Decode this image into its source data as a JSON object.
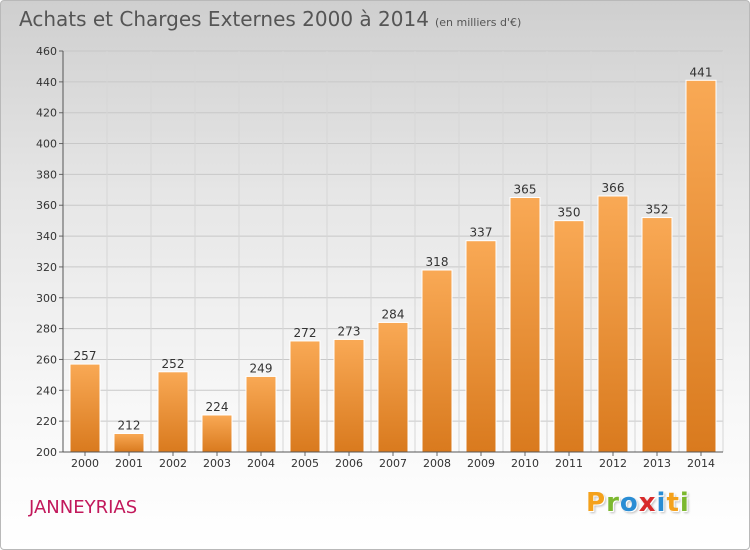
{
  "header": {
    "title": "Achats et Charges Externes 2000 à 2014",
    "subtitle": "(en milliers d'€)"
  },
  "footer": {
    "commune": "JANNEYRIAS",
    "logo_letters": [
      "P",
      "r",
      "o",
      "x",
      "i",
      "t",
      "i"
    ],
    "logo_colors": [
      "#f4a11b",
      "#7cb82f",
      "#2a8dd4",
      "#d82b2b",
      "#2a8dd4",
      "#f4a11b",
      "#7cb82f"
    ]
  },
  "chart_data": {
    "type": "bar",
    "title": "Achats et Charges Externes 2000 à 2014",
    "categories": [
      "2000",
      "2001",
      "2002",
      "2003",
      "2004",
      "2005",
      "2006",
      "2007",
      "2008",
      "2009",
      "2010",
      "2011",
      "2012",
      "2013",
      "2014"
    ],
    "values": [
      257,
      212,
      252,
      224,
      249,
      272,
      273,
      284,
      318,
      337,
      365,
      350,
      366,
      352,
      441
    ],
    "xlabel": "",
    "ylabel": "",
    "ylim": [
      200,
      460
    ],
    "yticks": [
      200,
      220,
      240,
      260,
      280,
      300,
      320,
      340,
      360,
      380,
      400,
      420,
      440,
      460
    ],
    "grid": true,
    "bar_color_top": "#f9a955",
    "bar_color_bottom": "#d97a1e"
  }
}
